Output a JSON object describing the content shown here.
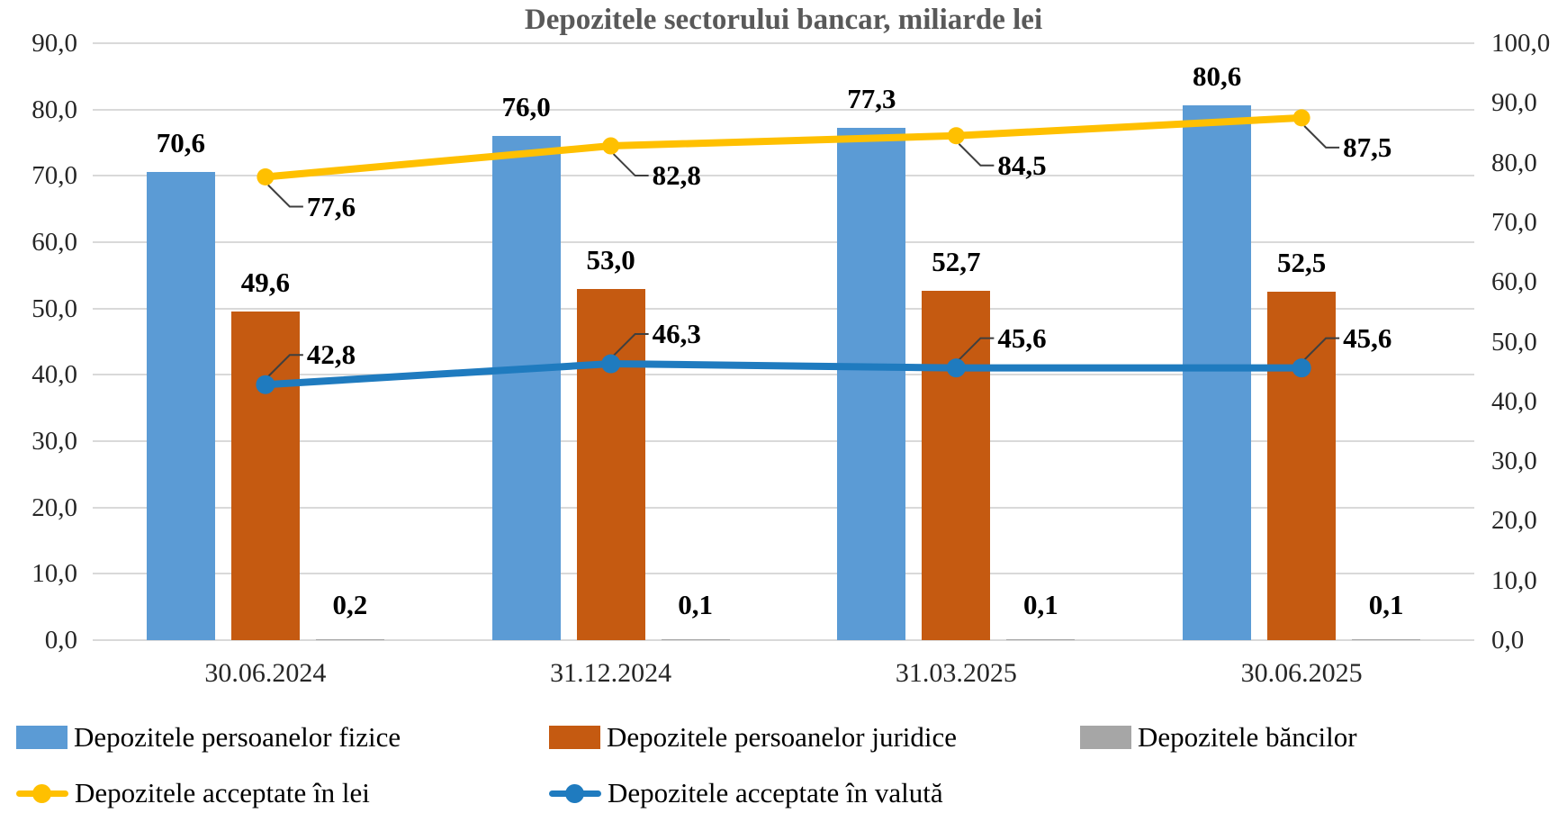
{
  "chart_data": {
    "type": "bar+line combo",
    "title": "Depozitele sectorului bancar, miliarde lei",
    "categories": [
      "30.06.2024",
      "31.12.2024",
      "31.03.2025",
      "30.06.2025"
    ],
    "bar_series": [
      {
        "name": "Depozitele persoanelor fizice",
        "color": "#5B9BD5",
        "axis": "left",
        "values": [
          70.6,
          76.0,
          77.3,
          80.6
        ],
        "labels": [
          "70,6",
          "76,0",
          "77,3",
          "80,6"
        ]
      },
      {
        "name": "Depozitele persoanelor juridice",
        "color": "#C55A11",
        "axis": "left",
        "values": [
          49.6,
          53.0,
          52.7,
          52.5
        ],
        "labels": [
          "49,6",
          "53,0",
          "52,7",
          "52,5"
        ]
      },
      {
        "name": "Depozitele băncilor",
        "color": "#A6A6A6",
        "axis": "left",
        "values": [
          0.2,
          0.1,
          0.1,
          0.1
        ],
        "labels": [
          "0,2",
          "0,1",
          "0,1",
          "0,1"
        ]
      }
    ],
    "line_series": [
      {
        "name": "Depozitele acceptate în lei",
        "color": "#FFC000",
        "axis": "right",
        "values": [
          77.6,
          82.8,
          84.5,
          87.5
        ],
        "labels": [
          "77,6",
          "82,8",
          "84,5",
          "87,5"
        ],
        "label_side": "below"
      },
      {
        "name": "Depozitele acceptate în valută",
        "color": "#1F7BBF",
        "axis": "right",
        "values": [
          42.8,
          46.3,
          45.6,
          45.6
        ],
        "labels": [
          "42,8",
          "46,3",
          "45,6",
          "45,6"
        ],
        "label_side": "above"
      }
    ],
    "left_axis": {
      "min": 0,
      "max": 90,
      "step": 10,
      "ticks": [
        "0,0",
        "10,0",
        "20,0",
        "30,0",
        "40,0",
        "50,0",
        "60,0",
        "70,0",
        "80,0",
        "90,0"
      ]
    },
    "right_axis": {
      "min": 0,
      "max": 100,
      "step": 10,
      "ticks": [
        "0,0",
        "10,0",
        "20,0",
        "30,0",
        "40,0",
        "50,0",
        "60,0",
        "70,0",
        "80,0",
        "90,0",
        "100,0"
      ]
    },
    "grid": true,
    "gridline_color": "#D9D9D9",
    "leader_line_color": "#3F3F3F",
    "title_color": "#595959",
    "legend_position": "bottom-left two rows"
  }
}
